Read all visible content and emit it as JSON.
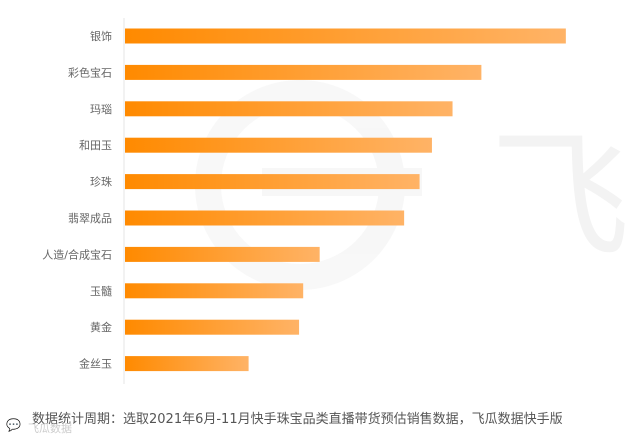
{
  "chart_data": {
    "type": "bar",
    "orientation": "horizontal",
    "categories": [
      "银饰",
      "彩色宝石",
      "玛瑙",
      "和田玉",
      "珍珠",
      "翡翠成品",
      "人造/合成宝石",
      "玉髓",
      "黄金",
      "金丝玉"
    ],
    "values": [
      428,
      346,
      318,
      298,
      286,
      271,
      189,
      173,
      169,
      120
    ],
    "xlim": [
      0,
      500
    ],
    "title": "",
    "xlabel": "",
    "ylabel": "",
    "grid": false,
    "legend": "none",
    "colors": {
      "bar_start": "#ff8a00",
      "bar_end": "#ffb366",
      "axis": "#e6e6e6",
      "label": "#666666"
    }
  },
  "footnote": {
    "text": "数据统计周期：选取2021年6月-11月快手珠宝品类直播带货预估销售数据，飞瓜数据快手版"
  },
  "watermark": {
    "text": "飞瓜数据",
    "glyph": "飞",
    "icon": "chat-bubble-icon"
  }
}
